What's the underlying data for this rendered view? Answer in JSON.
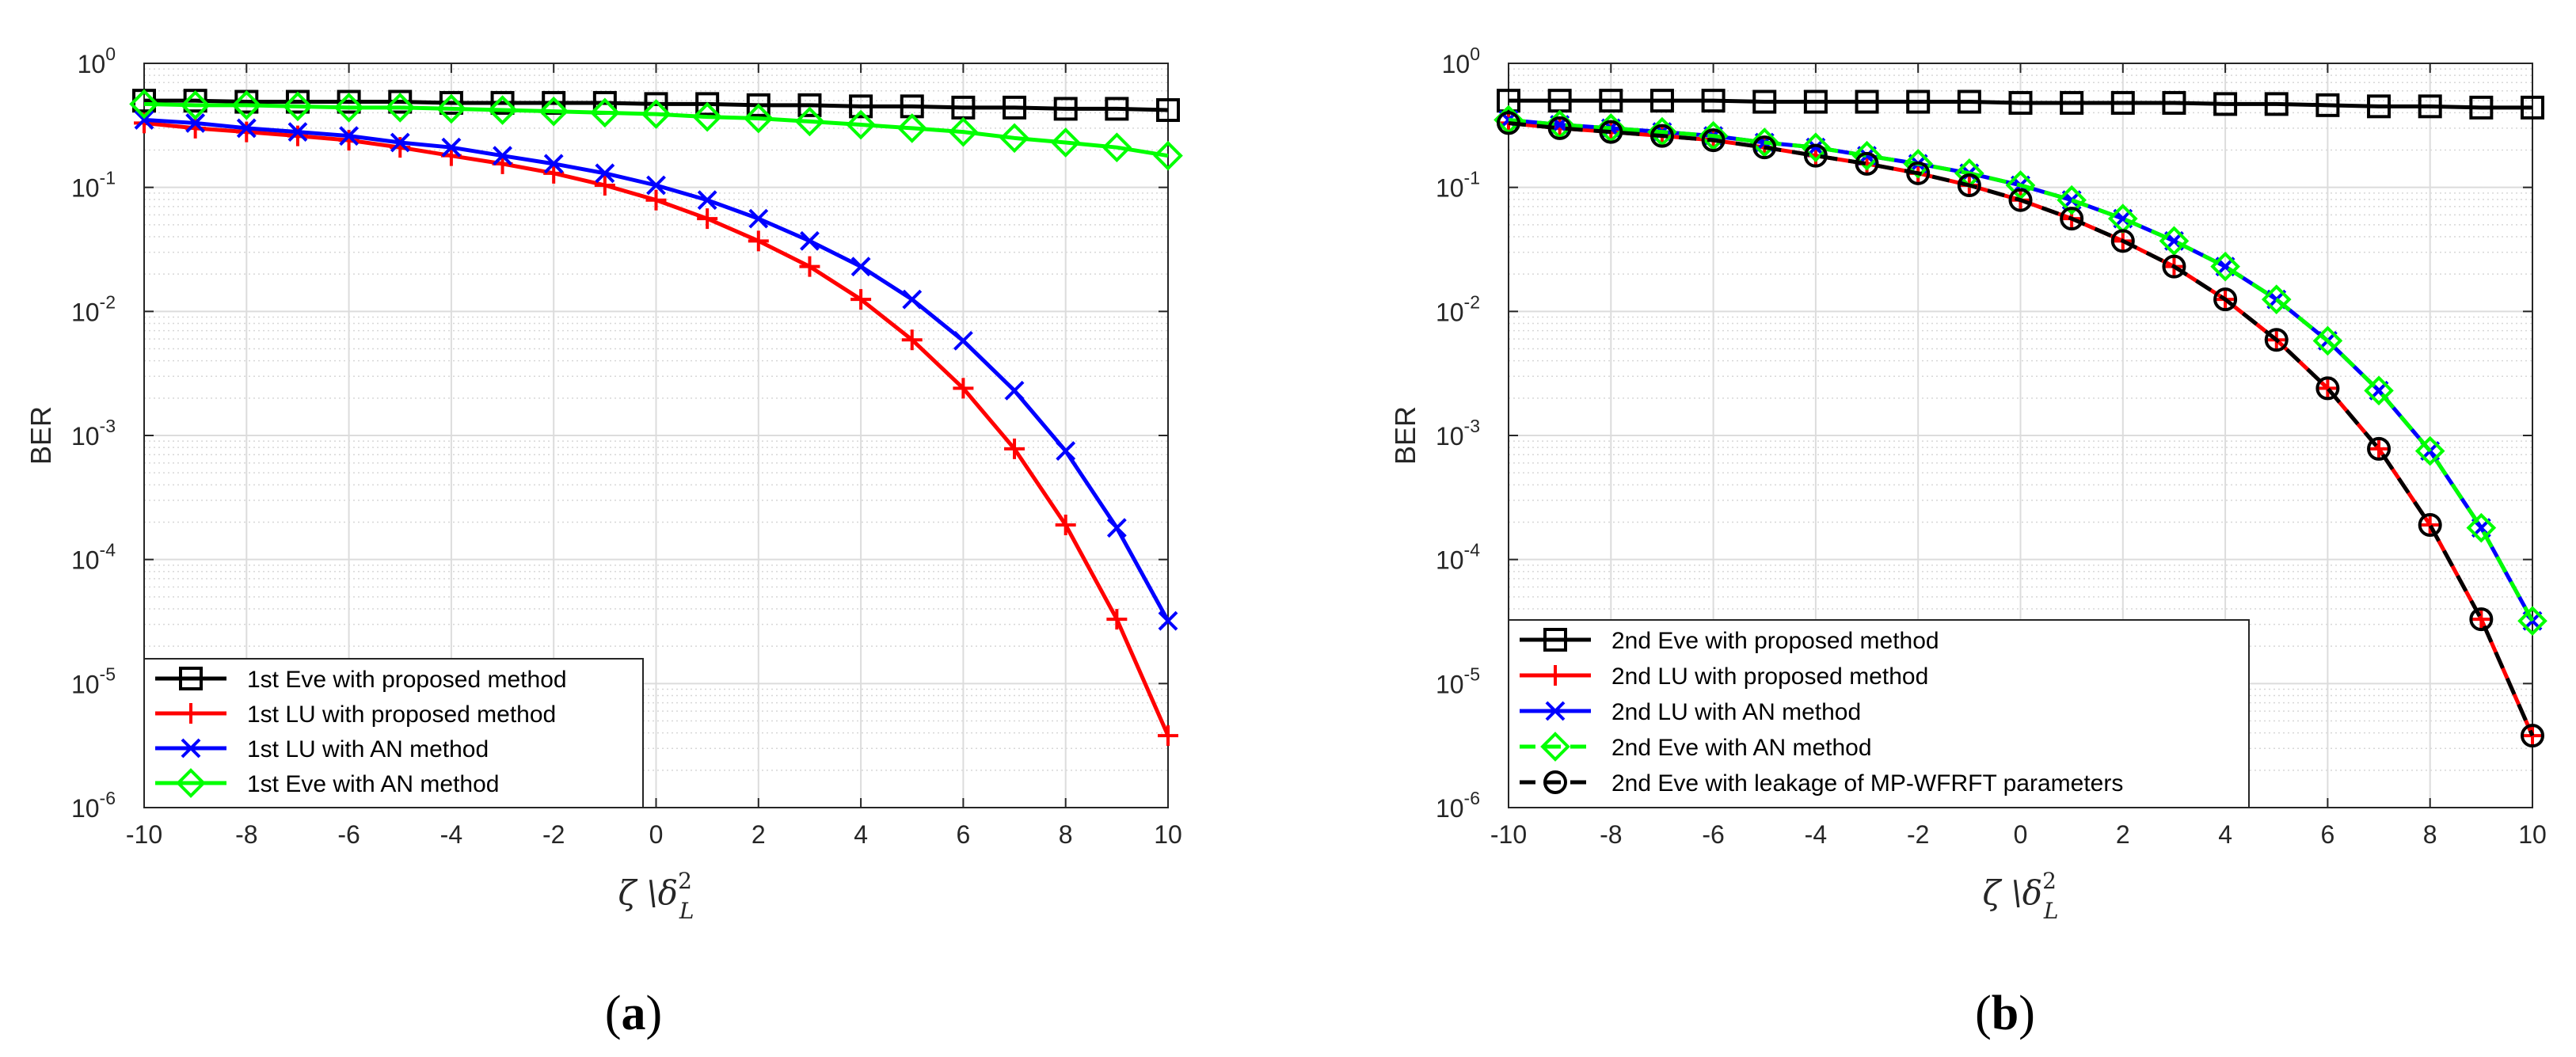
{
  "chart_data": [
    {
      "type": "line",
      "panel_label_open": "(",
      "panel_label_letter": "a",
      "panel_label_close": ")",
      "xlabel_main": "ζ \\δ",
      "xlabel_sup": "2",
      "xlabel_sub": "L",
      "ylabel": "BER",
      "xlim": [
        -10,
        10
      ],
      "ylim": [
        1e-06,
        1
      ],
      "yscale": "log",
      "grid": true,
      "minor_grid": true,
      "legend_position": "bottom-left",
      "x_ticks": [
        "-10",
        "-8",
        "-6",
        "-4",
        "-2",
        "0",
        "2",
        "4",
        "6",
        "8",
        "10"
      ],
      "y_tick_base": "10",
      "y_tick_exponents": [
        "0",
        "-1",
        "-2",
        "-3",
        "-4",
        "-5",
        "-6"
      ],
      "x": [
        -10,
        -9,
        -8,
        -7,
        -6,
        -5,
        -4,
        -3,
        -2,
        -1,
        0,
        1,
        2,
        3,
        4,
        5,
        6,
        7,
        8,
        9,
        10
      ],
      "series": [
        {
          "name": "1st Eve with proposed method",
          "color": "#000000",
          "marker": "square",
          "linestyle": "solid",
          "values": [
            0.5,
            0.5,
            0.49,
            0.49,
            0.49,
            0.49,
            0.48,
            0.48,
            0.48,
            0.48,
            0.47,
            0.47,
            0.46,
            0.46,
            0.45,
            0.45,
            0.44,
            0.44,
            0.43,
            0.43,
            0.42
          ]
        },
        {
          "name": "1st LU with proposed method",
          "color": "#ff0000",
          "marker": "plus",
          "linestyle": "solid",
          "values": [
            0.33,
            0.3,
            0.28,
            0.26,
            0.24,
            0.21,
            0.18,
            0.155,
            0.13,
            0.104,
            0.079,
            0.056,
            0.037,
            0.023,
            0.0125,
            0.0059,
            0.0024,
            0.00078,
            0.00019,
            3.3e-05,
            3.8e-06
          ]
        },
        {
          "name": "1st LU with AN method",
          "color": "#0000ff",
          "marker": "x",
          "linestyle": "solid",
          "values": [
            0.35,
            0.33,
            0.3,
            0.28,
            0.26,
            0.23,
            0.21,
            0.18,
            0.155,
            0.13,
            0.104,
            0.079,
            0.056,
            0.037,
            0.023,
            0.0125,
            0.0058,
            0.0023,
            0.00075,
            0.00018,
            3.2e-05
          ]
        },
        {
          "name": "1st Eve with AN method",
          "color": "#00ff00",
          "marker": "diamond",
          "linestyle": "solid",
          "values": [
            0.47,
            0.46,
            0.46,
            0.45,
            0.44,
            0.44,
            0.43,
            0.42,
            0.41,
            0.4,
            0.39,
            0.37,
            0.36,
            0.34,
            0.32,
            0.3,
            0.28,
            0.25,
            0.23,
            0.21,
            0.18
          ]
        }
      ]
    },
    {
      "type": "line",
      "panel_label_open": "(",
      "panel_label_letter": "b",
      "panel_label_close": ")",
      "xlabel_main": "ζ \\δ",
      "xlabel_sup": "2",
      "xlabel_sub": "L",
      "ylabel": "BER",
      "xlim": [
        -10,
        10
      ],
      "ylim": [
        1e-06,
        1
      ],
      "yscale": "log",
      "grid": true,
      "minor_grid": true,
      "legend_position": "bottom-left",
      "x_ticks": [
        "-10",
        "-8",
        "-6",
        "-4",
        "-2",
        "0",
        "2",
        "4",
        "6",
        "8",
        "10"
      ],
      "y_tick_base": "10",
      "y_tick_exponents": [
        "0",
        "-1",
        "-2",
        "-3",
        "-4",
        "-5",
        "-6"
      ],
      "x": [
        -10,
        -9,
        -8,
        -7,
        -6,
        -5,
        -4,
        -3,
        -2,
        -1,
        0,
        1,
        2,
        3,
        4,
        5,
        6,
        7,
        8,
        9,
        10
      ],
      "series": [
        {
          "name": "2nd Eve with proposed method",
          "color": "#000000",
          "marker": "square",
          "linestyle": "solid",
          "values": [
            0.5,
            0.5,
            0.5,
            0.5,
            0.5,
            0.49,
            0.49,
            0.49,
            0.49,
            0.49,
            0.48,
            0.48,
            0.48,
            0.48,
            0.47,
            0.47,
            0.46,
            0.45,
            0.45,
            0.44,
            0.44
          ]
        },
        {
          "name": "2nd LU with proposed method",
          "color": "#ff0000",
          "marker": "plus",
          "linestyle": "solid",
          "values": [
            0.33,
            0.3,
            0.28,
            0.26,
            0.24,
            0.21,
            0.18,
            0.155,
            0.13,
            0.104,
            0.079,
            0.056,
            0.037,
            0.023,
            0.0125,
            0.0059,
            0.0024,
            0.00078,
            0.00019,
            3.3e-05,
            3.8e-06
          ]
        },
        {
          "name": "2nd LU with AN method",
          "color": "#0000ff",
          "marker": "x",
          "linestyle": "solid",
          "values": [
            0.35,
            0.32,
            0.3,
            0.28,
            0.26,
            0.23,
            0.21,
            0.18,
            0.155,
            0.13,
            0.104,
            0.079,
            0.056,
            0.037,
            0.023,
            0.0125,
            0.0058,
            0.0023,
            0.00075,
            0.00018,
            3.2e-05
          ]
        },
        {
          "name": "2nd Eve with AN method",
          "color": "#00ff00",
          "marker": "diamond",
          "linestyle": "dashed",
          "values": [
            0.35,
            0.32,
            0.3,
            0.28,
            0.26,
            0.23,
            0.21,
            0.18,
            0.155,
            0.13,
            0.104,
            0.079,
            0.056,
            0.037,
            0.023,
            0.0125,
            0.0058,
            0.0023,
            0.00075,
            0.00018,
            3.2e-05
          ]
        },
        {
          "name": "2nd Eve with leakage of MP-WFRFT parameters",
          "color": "#000000",
          "marker": "circle",
          "linestyle": "dashed",
          "values": [
            0.33,
            0.3,
            0.28,
            0.26,
            0.24,
            0.21,
            0.18,
            0.155,
            0.13,
            0.104,
            0.079,
            0.056,
            0.037,
            0.023,
            0.0125,
            0.0059,
            0.0024,
            0.00078,
            0.00019,
            3.3e-05,
            3.8e-06
          ]
        }
      ]
    }
  ]
}
